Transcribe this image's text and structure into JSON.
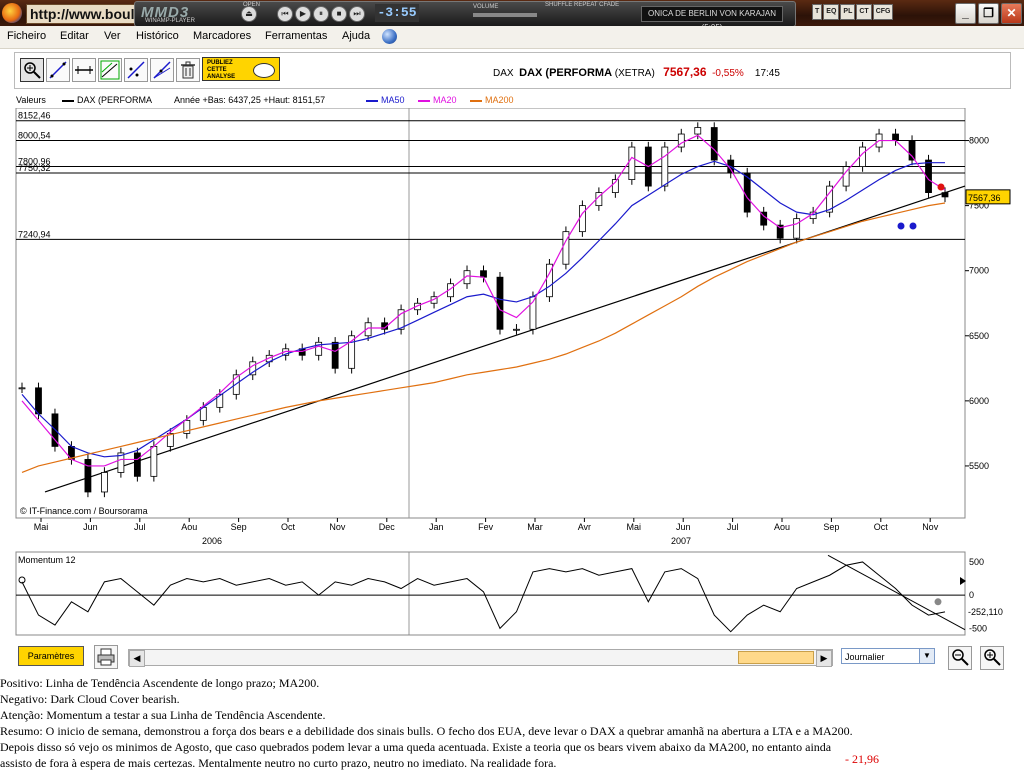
{
  "browser": {
    "url": "http://www.boul",
    "player": {
      "name": "MMD3",
      "sub": "WINAMP-PLAYER",
      "time": "-3:55",
      "open_label": "OPEN",
      "volume_label": "VOLUME",
      "shuffle_label": "SHUFFLE REPEAT CFADE",
      "track": "ONICA DE BERLIN VON KARAJAN (5:05)",
      "side_buttons": [
        "T",
        "EQ",
        "PL",
        "CT",
        "CFG"
      ]
    },
    "window_buttons": [
      "_",
      "❐",
      "✕"
    ]
  },
  "menu": [
    "Ficheiro",
    "Editar",
    "Ver",
    "Histórico",
    "Marcadores",
    "Ferramentas",
    "Ajuda"
  ],
  "toolbar": {
    "publiez_lines": [
      "PUBLIEZ",
      "CETTE",
      "ANALYSE"
    ]
  },
  "quote": {
    "symbol": "DAX",
    "name": "DAX (PERFORMA",
    "exchange": "(XETRA)",
    "price": "7567,36",
    "change": "-0,55%",
    "time": "17:45"
  },
  "legend": {
    "valeurs": "Valeurs",
    "series": "DAX (PERFORMA",
    "stats": "Année +Bas: 6437,25 +Haut: 8151,57",
    "ma50": "MA50",
    "ma20": "MA20",
    "ma200": "MA200"
  },
  "colors": {
    "price": "#000000",
    "ma50": "#1a1acc",
    "ma20": "#e010e0",
    "ma200": "#e07010",
    "trend": "#000000",
    "candle_up": "#ffffff",
    "candle_down": "#000000",
    "accent_yellow": "#ffd400",
    "last_price_bg": "#ffd400",
    "negative": "#cc0000"
  },
  "chart_data": [
    {
      "type": "line",
      "title": "DAX (PERFORMA",
      "source": "© IT-Finance.com / Boursorama",
      "ylim": [
        5100,
        8250
      ],
      "yticks": [
        5500,
        6000,
        6500,
        7000,
        7500,
        8000
      ],
      "horizontal_levels": [
        "8152,46",
        "8000,54",
        "7800,96",
        "7750,32",
        "7240,94"
      ],
      "months": [
        "Mai",
        "Jun",
        "Jul",
        "Aou",
        "Sep",
        "Oct",
        "Nov",
        "Dec",
        "Jan",
        "Fev",
        "Mar",
        "Avr",
        "Mai",
        "Jun",
        "Jul",
        "Aou",
        "Sep",
        "Oct",
        "Nov"
      ],
      "years": [
        "2006",
        "2007"
      ],
      "last_price": "7567,36",
      "series": [
        {
          "name": "DAX (PERFORMA",
          "values": [
            6100,
            5900,
            5650,
            5550,
            5300,
            5450,
            5600,
            5420,
            5650,
            5750,
            5850,
            5950,
            6050,
            6200,
            6300,
            6350,
            6400,
            6350,
            6450,
            6250,
            6500,
            6600,
            6550,
            6700,
            6750,
            6800,
            6900,
            7000,
            6950,
            6550,
            6550,
            6800,
            7050,
            7300,
            7500,
            7600,
            7700,
            7950,
            7650,
            7950,
            8050,
            8100,
            7850,
            7750,
            7450,
            7350,
            7250,
            7400,
            7450,
            7650,
            7800,
            7950,
            8050,
            8000,
            7850,
            7600,
            7567
          ]
        },
        {
          "name": "MA50",
          "values": [
            6050,
            5900,
            5780,
            5650,
            5600,
            5570,
            5580,
            5620,
            5700,
            5780,
            5860,
            5950,
            6040,
            6130,
            6220,
            6300,
            6360,
            6400,
            6430,
            6440,
            6450,
            6480,
            6520,
            6560,
            6620,
            6680,
            6740,
            6800,
            6820,
            6780,
            6760,
            6800,
            6880,
            6980,
            7100,
            7230,
            7360,
            7500,
            7580,
            7660,
            7740,
            7800,
            7840,
            7800,
            7720,
            7620,
            7520,
            7450,
            7430,
            7470,
            7540,
            7620,
            7700,
            7770,
            7820,
            7830,
            7830
          ]
        },
        {
          "name": "MA20",
          "values": [
            6000,
            5850,
            5700,
            5550,
            5500,
            5500,
            5550,
            5550,
            5650,
            5760,
            5860,
            5960,
            6060,
            6180,
            6270,
            6330,
            6380,
            6380,
            6420,
            6380,
            6460,
            6560,
            6560,
            6670,
            6730,
            6780,
            6860,
            6960,
            6950,
            6700,
            6640,
            6760,
            6980,
            7230,
            7440,
            7570,
            7680,
            7870,
            7800,
            7880,
            7980,
            8040,
            7930,
            7780,
            7560,
            7420,
            7330,
            7360,
            7440,
            7600,
            7760,
            7900,
            8000,
            8000,
            7880,
            7700,
            7620
          ]
        },
        {
          "name": "MA200",
          "values": [
            5450,
            5500,
            5530,
            5560,
            5590,
            5620,
            5650,
            5680,
            5710,
            5740,
            5770,
            5800,
            5830,
            5860,
            5890,
            5920,
            5950,
            5975,
            6000,
            6020,
            6040,
            6060,
            6080,
            6100,
            6120,
            6140,
            6170,
            6200,
            6220,
            6240,
            6260,
            6290,
            6320,
            6360,
            6410,
            6460,
            6520,
            6590,
            6660,
            6730,
            6800,
            6880,
            6950,
            7010,
            7070,
            7120,
            7170,
            7220,
            7260,
            7300,
            7340,
            7380,
            7410,
            7440,
            7470,
            7500,
            7520
          ]
        }
      ]
    },
    {
      "type": "line",
      "title": "Momentum 12",
      "ylim": [
        -600,
        650
      ],
      "yticks": [
        500,
        0,
        -500
      ],
      "last_value": "-252,110",
      "series": [
        {
          "name": "Momentum 12",
          "values": [
            200,
            -300,
            -450,
            -100,
            -250,
            200,
            250,
            50,
            -150,
            150,
            250,
            200,
            250,
            150,
            200,
            250,
            150,
            200,
            0,
            200,
            150,
            250,
            200,
            100,
            250,
            150,
            200,
            250,
            50,
            -500,
            -250,
            350,
            400,
            350,
            400,
            300,
            350,
            400,
            -100,
            350,
            400,
            250,
            -300,
            -550,
            -300,
            -150,
            -250,
            100,
            200,
            300,
            450,
            500,
            300,
            100,
            -150,
            -300,
            -252
          ]
        }
      ]
    }
  ],
  "bottom": {
    "params": "Paramètres",
    "period": "Journalier"
  },
  "analysis": {
    "lines": [
      "Positivo: Linha de Tendência Ascendente de longo prazo; MA200.",
      "Negativo: Dark Cloud Cover bearish.",
      "Atenção: Momentum a testar a sua Linha de Tendência Ascendente.",
      "Resumo: O inicio de semana, demonstrou a força dos bears e a debilidade dos sinais bulls. O fecho dos EUA, deve levar o DAX a quebrar amanhã na abertura a LTA e a MA200.",
      "Depois disso só vejo os minimos de Agosto, que caso quebrados podem levar a uma queda acentuada. Existe a teoria que os bears vivem abaixo da MA200, no entanto ainda",
      "assisto de fora à espera de mais certezas. Mentalmente neutro no curto prazo, neutro no imediato. Na realidade fora."
    ],
    "footnote": "- 21,96"
  }
}
